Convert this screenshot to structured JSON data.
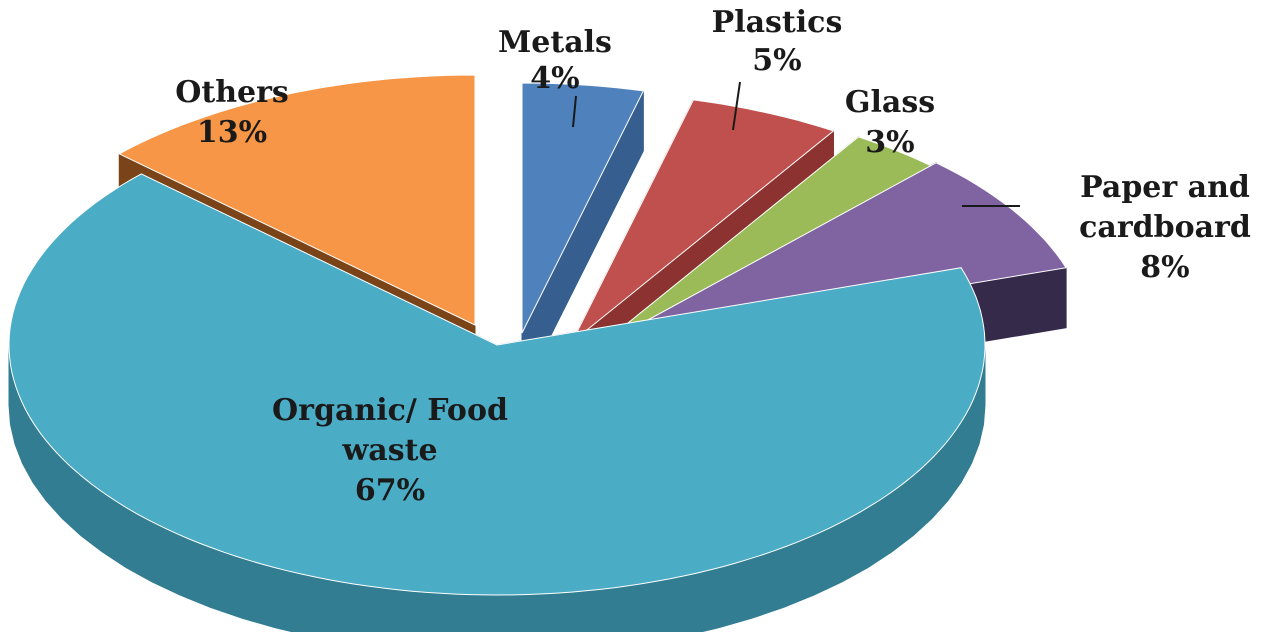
{
  "chart_data": {
    "type": "pie",
    "style": "3d-exploded",
    "slices": [
      {
        "label_lines": [
          "Metals"
        ],
        "value_label": "4%",
        "value": 4,
        "color": "#4f81bd",
        "side_color": "#365f8f"
      },
      {
        "label_lines": [
          "Plastics"
        ],
        "value_label": "5%",
        "value": 5,
        "color": "#c0504d",
        "side_color": "#8c3331"
      },
      {
        "label_lines": [
          "Glass"
        ],
        "value_label": "3%",
        "value": 3,
        "color": "#9bbb59",
        "side_color": "#6b8a35"
      },
      {
        "label_lines": [
          "Paper and",
          "cardboard"
        ],
        "value_label": "8%",
        "value": 8,
        "color": "#8064a2",
        "side_color": "#352a4a"
      },
      {
        "label_lines": [
          "Organic/ Food",
          "waste"
        ],
        "value_label": "67%",
        "value": 67,
        "color": "#4bacc6",
        "side_color": "#327d92"
      },
      {
        "label_lines": [
          "Others"
        ],
        "value_label": "13%",
        "value": 13,
        "color": "#f79646",
        "side_color": "#7a4418"
      }
    ]
  }
}
